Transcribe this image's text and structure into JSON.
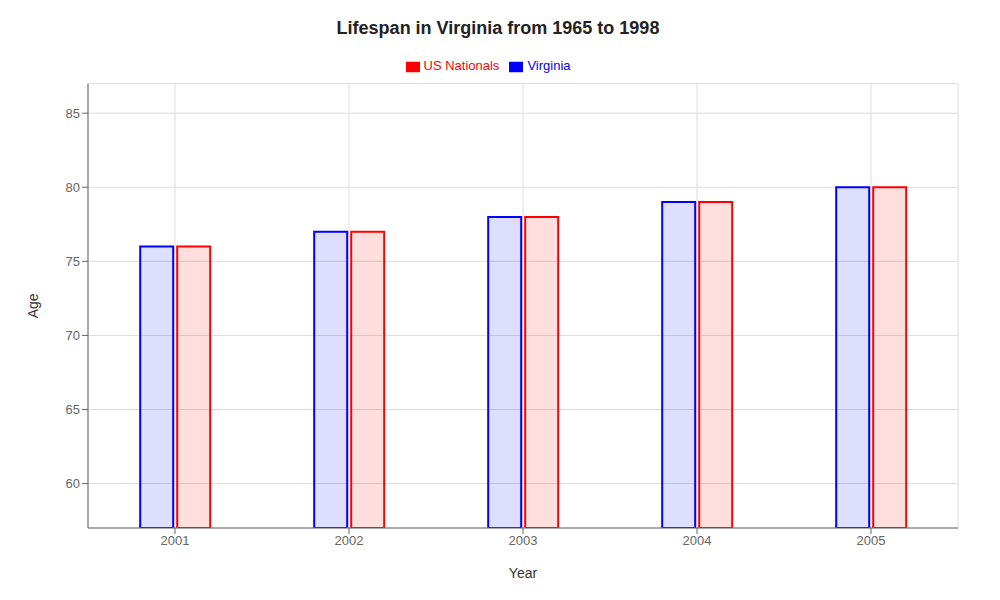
{
  "chart_data": {
    "type": "bar",
    "title": "Lifespan in Virginia from 1965 to 1998",
    "xlabel": "Year",
    "ylabel": "Age",
    "categories": [
      "2001",
      "2002",
      "2003",
      "2004",
      "2005"
    ],
    "series": [
      {
        "name": "Virginia",
        "color": "#0000ff",
        "values": [
          76,
          77,
          78,
          79,
          80
        ]
      },
      {
        "name": "US Nationals",
        "color": "#ff0000",
        "values": [
          76,
          77,
          78,
          79,
          80
        ]
      }
    ],
    "ylim": [
      57,
      87
    ],
    "yticks": [
      60,
      65,
      70,
      75,
      80,
      85
    ],
    "grid": true,
    "legend": "top"
  }
}
